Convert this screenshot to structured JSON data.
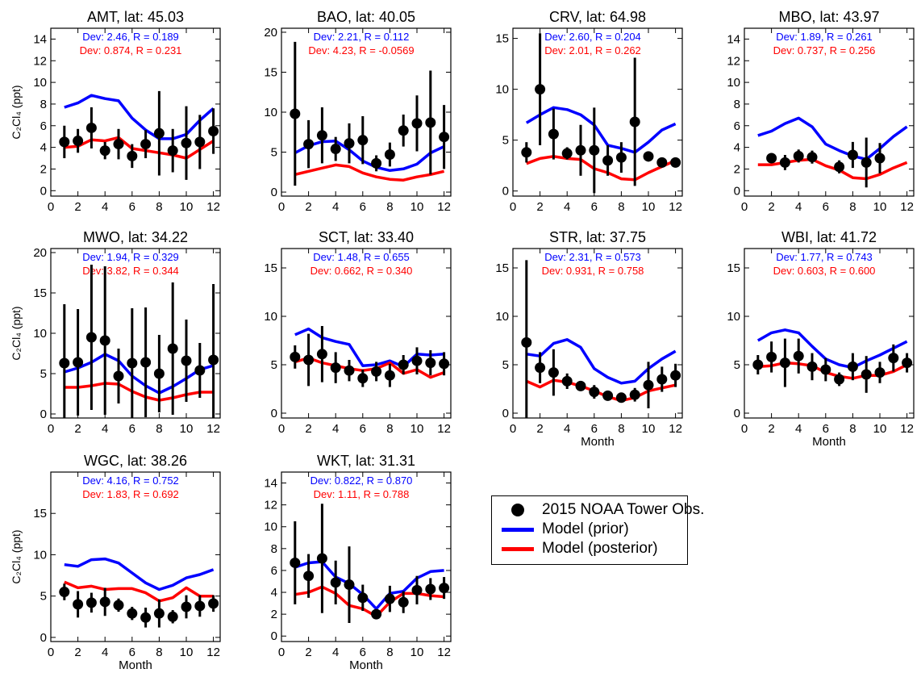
{
  "chart_data": [
    {
      "type": "line",
      "title": "AMT, lat: 45.03",
      "ylabel": "C₂Cl₄ (ppt)",
      "xlabel": "",
      "x": [
        1,
        2,
        3,
        4,
        5,
        6,
        7,
        8,
        9,
        10,
        11,
        12
      ],
      "xlim": [
        0,
        12.5
      ],
      "xticks": [
        0,
        2,
        4,
        6,
        8,
        10,
        12
      ],
      "ylim": [
        -0.5,
        15
      ],
      "yticks": [
        0,
        2,
        4,
        6,
        8,
        10,
        12,
        14
      ],
      "annotations": [
        "Dev: 2.46, R = 0.189",
        "Dev: 0.874, R = 0.231"
      ],
      "series": [
        {
          "name": "2015 NOAA Tower Obs.",
          "values": [
            4.5,
            4.6,
            5.8,
            3.7,
            4.3,
            3.2,
            4.3,
            5.3,
            3.7,
            4.4,
            4.5,
            5.5
          ],
          "err": [
            1.5,
            1.1,
            1.9,
            0.8,
            1.4,
            1.1,
            1.3,
            3.9,
            2.0,
            3.4,
            2.5,
            2.1
          ]
        },
        {
          "name": "Model (prior)",
          "values": [
            7.7,
            8.1,
            8.8,
            8.5,
            8.3,
            6.7,
            5.6,
            4.8,
            4.8,
            5.2,
            6.5,
            7.6
          ]
        },
        {
          "name": "Model (posterior)",
          "values": [
            4.0,
            4.1,
            4.7,
            4.6,
            4.9,
            3.9,
            3.7,
            3.5,
            3.3,
            3.0,
            3.8,
            4.6
          ]
        }
      ]
    },
    {
      "type": "line",
      "title": "BAO, lat: 40.05",
      "ylabel": "",
      "xlabel": "",
      "x": [
        1,
        2,
        3,
        4,
        5,
        6,
        7,
        8,
        9,
        10,
        11,
        12
      ],
      "xlim": [
        0,
        12.5
      ],
      "xticks": [
        0,
        2,
        4,
        6,
        8,
        10,
        12
      ],
      "ylim": [
        -0.5,
        20.5
      ],
      "yticks": [
        0,
        5,
        10,
        15,
        20
      ],
      "annotations": [
        "Dev: 2.21, R = 0.112",
        "Dev: 4.23, R = -0.0569"
      ],
      "series": [
        {
          "name": "2015 NOAA Tower Obs.",
          "values": [
            9.8,
            6.0,
            7.1,
            5.4,
            6.1,
            6.5,
            3.6,
            4.7,
            7.7,
            8.6,
            8.7,
            6.9
          ],
          "err": [
            9.0,
            3.0,
            3.5,
            1.5,
            2.5,
            3.0,
            1.0,
            1.5,
            2.0,
            3.5,
            6.5,
            4.0
          ]
        },
        {
          "name": "Model (prior)",
          "values": [
            4.9,
            5.8,
            6.3,
            6.4,
            5.3,
            3.9,
            3.1,
            2.7,
            2.9,
            3.5,
            4.9,
            5.7
          ]
        },
        {
          "name": "Model (posterior)",
          "values": [
            2.2,
            2.6,
            3.0,
            3.4,
            3.2,
            2.4,
            1.9,
            1.6,
            1.5,
            1.9,
            2.2,
            2.6
          ]
        }
      ]
    },
    {
      "type": "line",
      "title": "CRV, lat: 64.98",
      "ylabel": "",
      "xlabel": "",
      "x": [
        1,
        2,
        3,
        4,
        5,
        6,
        7,
        8,
        9,
        10,
        11,
        12
      ],
      "xlim": [
        0,
        12.5
      ],
      "xticks": [
        0,
        2,
        4,
        6,
        8,
        10,
        12
      ],
      "ylim": [
        -0.5,
        16
      ],
      "yticks": [
        0,
        5,
        10,
        15
      ],
      "annotations": [
        "Dev: 2.60, R = 0.204",
        "Dev: 2.01, R = 0.262"
      ],
      "series": [
        {
          "name": "2015 NOAA Tower Obs.",
          "values": [
            3.8,
            10.0,
            5.6,
            3.7,
            4.0,
            4.0,
            3.0,
            3.3,
            6.8,
            3.4,
            2.8,
            2.8
          ],
          "err": [
            1.0,
            5.5,
            2.5,
            0.6,
            2.5,
            4.2,
            1.5,
            1.5,
            6.3,
            0.5,
            0.4,
            0.3
          ]
        },
        {
          "name": "Model (prior)",
          "values": [
            6.7,
            7.5,
            8.2,
            8.0,
            7.5,
            6.5,
            4.5,
            4.2,
            3.8,
            4.8,
            6.0,
            6.6
          ]
        },
        {
          "name": "Model (posterior)",
          "values": [
            2.7,
            3.2,
            3.4,
            3.2,
            3.1,
            2.2,
            1.8,
            1.2,
            1.1,
            1.8,
            2.4,
            3.0
          ]
        }
      ]
    },
    {
      "type": "line",
      "title": "MBO, lat: 43.97",
      "ylabel": "",
      "xlabel": "",
      "x": [
        1,
        2,
        3,
        4,
        5,
        6,
        7,
        8,
        9,
        10,
        11,
        12
      ],
      "xlim": [
        0,
        12.5
      ],
      "xticks": [
        0,
        2,
        4,
        6,
        8,
        10,
        12
      ],
      "ylim": [
        -0.5,
        15
      ],
      "yticks": [
        0,
        2,
        4,
        6,
        8,
        10,
        12,
        14
      ],
      "annotations": [
        "Dev: 1.89, R = 0.261",
        "Dev: 0.737, R = 0.256"
      ],
      "series": [
        {
          "name": "2015 NOAA Tower Obs.",
          "x": [
            2,
            3,
            4,
            5,
            7,
            8,
            9,
            10
          ],
          "values": [
            3.0,
            2.6,
            3.2,
            3.1,
            2.2,
            3.3,
            2.6,
            3.0
          ],
          "err": [
            0.4,
            0.7,
            0.6,
            0.6,
            0.6,
            1.2,
            2.3,
            1.4
          ]
        },
        {
          "name": "Model (prior)",
          "values": [
            5.1,
            5.5,
            6.2,
            6.7,
            5.9,
            4.3,
            3.7,
            3.2,
            2.9,
            3.9,
            5.0,
            5.9
          ]
        },
        {
          "name": "Model (posterior)",
          "values": [
            2.4,
            2.4,
            2.6,
            2.8,
            2.9,
            2.3,
            1.9,
            1.2,
            1.1,
            1.5,
            2.1,
            2.6
          ]
        }
      ]
    },
    {
      "type": "line",
      "title": "MWO, lat: 34.22",
      "ylabel": "C₂Cl₄ (ppt)",
      "xlabel": "",
      "x": [
        1,
        2,
        3,
        4,
        5,
        6,
        7,
        8,
        9,
        10,
        11,
        12
      ],
      "xlim": [
        0,
        12.5
      ],
      "xticks": [
        0,
        2,
        4,
        6,
        8,
        10,
        12
      ],
      "ylim": [
        -0.5,
        20.5
      ],
      "yticks": [
        0,
        5,
        10,
        15,
        20
      ],
      "annotations": [
        "Dev: 1.94, R = 0.329",
        "Dev: 3.82, R = 0.344"
      ],
      "series": [
        {
          "name": "2015 NOAA Tower Obs.",
          "values": [
            6.3,
            6.4,
            9.5,
            9.1,
            4.7,
            6.3,
            6.4,
            5.0,
            8.1,
            6.6,
            5.4,
            6.7
          ],
          "err": [
            7.3,
            6.6,
            9.0,
            9.2,
            3.4,
            6.8,
            6.8,
            4.8,
            8.2,
            5.1,
            3.4,
            9.4
          ]
        },
        {
          "name": "Model (prior)",
          "values": [
            5.2,
            5.7,
            6.4,
            7.4,
            6.6,
            4.7,
            3.5,
            2.6,
            3.4,
            4.4,
            5.5,
            6.0
          ]
        },
        {
          "name": "Model (posterior)",
          "values": [
            3.3,
            3.3,
            3.5,
            3.8,
            3.7,
            2.8,
            2.1,
            1.7,
            2.0,
            2.4,
            2.7,
            2.7
          ]
        }
      ]
    },
    {
      "type": "line",
      "title": "SCT, lat: 33.40",
      "ylabel": "",
      "xlabel": "",
      "x": [
        1,
        2,
        3,
        4,
        5,
        6,
        7,
        8,
        9,
        10,
        11,
        12
      ],
      "xlim": [
        0,
        12.5
      ],
      "xticks": [
        0,
        2,
        4,
        6,
        8,
        10,
        12
      ],
      "ylim": [
        -0.5,
        17
      ],
      "yticks": [
        0,
        5,
        10,
        15
      ],
      "annotations": [
        "Dev: 1.48, R = 0.655",
        "Dev: 0.662, R = 0.340"
      ],
      "series": [
        {
          "name": "2015 NOAA Tower Obs.",
          "values": [
            5.8,
            5.5,
            6.1,
            4.7,
            4.4,
            3.6,
            4.3,
            3.9,
            5.0,
            5.4,
            5.2,
            5.1
          ],
          "err": [
            1.2,
            2.7,
            2.9,
            1.6,
            1.1,
            0.9,
            1.0,
            1.2,
            1.0,
            1.4,
            1.3,
            1.2
          ]
        },
        {
          "name": "Model (prior)",
          "values": [
            8.1,
            8.7,
            7.8,
            7.4,
            7.1,
            4.9,
            5.0,
            5.4,
            4.8,
            6.1,
            6.0,
            6.1
          ]
        },
        {
          "name": "Model (posterior)",
          "values": [
            5.3,
            5.7,
            5.2,
            4.9,
            4.6,
            4.4,
            4.6,
            5.2,
            4.1,
            4.5,
            3.7,
            4.2
          ]
        }
      ]
    },
    {
      "type": "line",
      "title": "STR, lat: 37.75",
      "ylabel": "",
      "xlabel": "Month",
      "x": [
        1,
        2,
        3,
        4,
        5,
        6,
        7,
        8,
        9,
        10,
        11,
        12
      ],
      "xlim": [
        0,
        12.5
      ],
      "xticks": [
        0,
        2,
        4,
        6,
        8,
        10,
        12
      ],
      "ylim": [
        -0.5,
        17
      ],
      "yticks": [
        0,
        5,
        10,
        15
      ],
      "annotations": [
        "Dev: 2.31, R = 0.573",
        "Dev: 0.931, R = 0.758"
      ],
      "series": [
        {
          "name": "2015 NOAA Tower Obs.",
          "values": [
            7.3,
            4.7,
            4.2,
            3.3,
            2.8,
            2.2,
            1.8,
            1.6,
            1.9,
            2.9,
            3.5,
            3.9
          ],
          "err": [
            8.5,
            1.6,
            2.4,
            0.8,
            0.5,
            0.7,
            0.3,
            0.4,
            0.7,
            2.4,
            1.3,
            1.2
          ]
        },
        {
          "name": "Model (prior)",
          "values": [
            6.1,
            5.9,
            7.2,
            7.6,
            6.8,
            4.6,
            3.7,
            3.1,
            3.3,
            4.6,
            5.6,
            6.4
          ]
        },
        {
          "name": "Model (posterior)",
          "values": [
            3.3,
            2.7,
            3.4,
            3.2,
            2.8,
            2.3,
            1.7,
            1.3,
            1.6,
            2.3,
            2.6,
            2.9
          ]
        }
      ]
    },
    {
      "type": "line",
      "title": "WBI, lat: 41.72",
      "ylabel": "",
      "xlabel": "Month",
      "x": [
        1,
        2,
        3,
        4,
        5,
        6,
        7,
        8,
        9,
        10,
        11,
        12
      ],
      "xlim": [
        0,
        12.5
      ],
      "xticks": [
        0,
        2,
        4,
        6,
        8,
        10,
        12
      ],
      "ylim": [
        -0.5,
        17
      ],
      "yticks": [
        0,
        5,
        10,
        15
      ],
      "annotations": [
        "Dev: 1.77, R = 0.743",
        "Dev: 0.603, R = 0.600"
      ],
      "series": [
        {
          "name": "2015 NOAA Tower Obs.",
          "values": [
            5.0,
            5.8,
            5.2,
            5.9,
            4.8,
            4.5,
            3.5,
            4.8,
            4.0,
            4.2,
            5.7,
            5.2
          ],
          "err": [
            1.0,
            1.6,
            2.5,
            1.8,
            1.4,
            1.2,
            0.7,
            1.4,
            1.9,
            1.1,
            1.4,
            1.0
          ]
        },
        {
          "name": "Model (prior)",
          "values": [
            7.5,
            8.3,
            8.6,
            8.3,
            6.9,
            5.6,
            5.0,
            4.7,
            5.4,
            6.0,
            6.7,
            7.4
          ]
        },
        {
          "name": "Model (posterior)",
          "values": [
            4.8,
            4.9,
            5.2,
            5.1,
            4.9,
            4.2,
            3.8,
            3.6,
            3.9,
            3.9,
            4.3,
            5.0
          ]
        }
      ]
    },
    {
      "type": "line",
      "title": "WGC, lat: 38.26",
      "ylabel": "C₂Cl₄ (ppt)",
      "xlabel": "Month",
      "x": [
        1,
        2,
        3,
        4,
        5,
        6,
        7,
        8,
        9,
        10,
        11,
        12
      ],
      "xlim": [
        0,
        12.5
      ],
      "xticks": [
        0,
        2,
        4,
        6,
        8,
        10,
        12
      ],
      "ylim": [
        -0.5,
        20
      ],
      "yticks": [
        0,
        5,
        10,
        15
      ],
      "annotations": [
        "Dev: 4.16, R = 0.752",
        "Dev: 1.83, R = 0.692"
      ],
      "series": [
        {
          "name": "2015 NOAA Tower Obs.",
          "values": [
            5.5,
            4.0,
            4.2,
            4.3,
            3.9,
            2.9,
            2.4,
            2.9,
            2.5,
            3.7,
            3.8,
            4.1
          ],
          "err": [
            1.0,
            1.6,
            1.2,
            1.7,
            0.8,
            0.8,
            1.2,
            1.7,
            0.8,
            1.4,
            1.3,
            1.0
          ]
        },
        {
          "name": "Model (prior)",
          "values": [
            8.8,
            8.6,
            9.4,
            9.5,
            9.0,
            7.8,
            6.6,
            5.8,
            6.3,
            7.2,
            7.6,
            8.2
          ]
        },
        {
          "name": "Model (posterior)",
          "values": [
            6.7,
            6.0,
            6.2,
            5.8,
            5.9,
            5.9,
            5.4,
            4.4,
            4.8,
            6.0,
            5.0,
            5.0
          ]
        }
      ]
    },
    {
      "type": "line",
      "title": "WKT, lat: 31.31",
      "ylabel": "",
      "xlabel": "Month",
      "x": [
        1,
        2,
        3,
        4,
        5,
        6,
        7,
        8,
        9,
        10,
        11,
        12
      ],
      "xlim": [
        0,
        12.5
      ],
      "xticks": [
        0,
        2,
        4,
        6,
        8,
        10,
        12
      ],
      "ylim": [
        -0.5,
        15
      ],
      "yticks": [
        0,
        2,
        4,
        6,
        8,
        10,
        12,
        14
      ],
      "annotations": [
        "Dev: 0.822, R = 0.870",
        "Dev: 1.11, R = 0.788"
      ],
      "series": [
        {
          "name": "2015 NOAA Tower Obs.",
          "values": [
            6.7,
            5.5,
            7.1,
            4.9,
            4.7,
            3.5,
            2.0,
            3.4,
            3.1,
            4.2,
            4.3,
            4.4
          ],
          "err": [
            3.8,
            2.0,
            5.0,
            2.0,
            3.5,
            1.2,
            0.4,
            1.2,
            1.0,
            1.3,
            1.0,
            1.0
          ]
        },
        {
          "name": "Model (prior)",
          "values": [
            6.3,
            6.7,
            6.8,
            5.4,
            4.8,
            3.8,
            2.5,
            3.9,
            4.1,
            5.3,
            5.9,
            6.0
          ]
        },
        {
          "name": "Model (posterior)",
          "values": [
            3.8,
            4.0,
            4.5,
            3.9,
            2.8,
            2.5,
            1.8,
            3.1,
            3.9,
            3.9,
            3.7,
            3.6
          ]
        }
      ]
    }
  ],
  "legend": {
    "obs": "2015 NOAA Tower Obs.",
    "prior": "Model (prior)",
    "posterior": "Model (posterior)"
  },
  "colors": {
    "obs": "#000000",
    "prior": "#0000ff",
    "posterior": "#ff0000",
    "axis": "#000000"
  }
}
